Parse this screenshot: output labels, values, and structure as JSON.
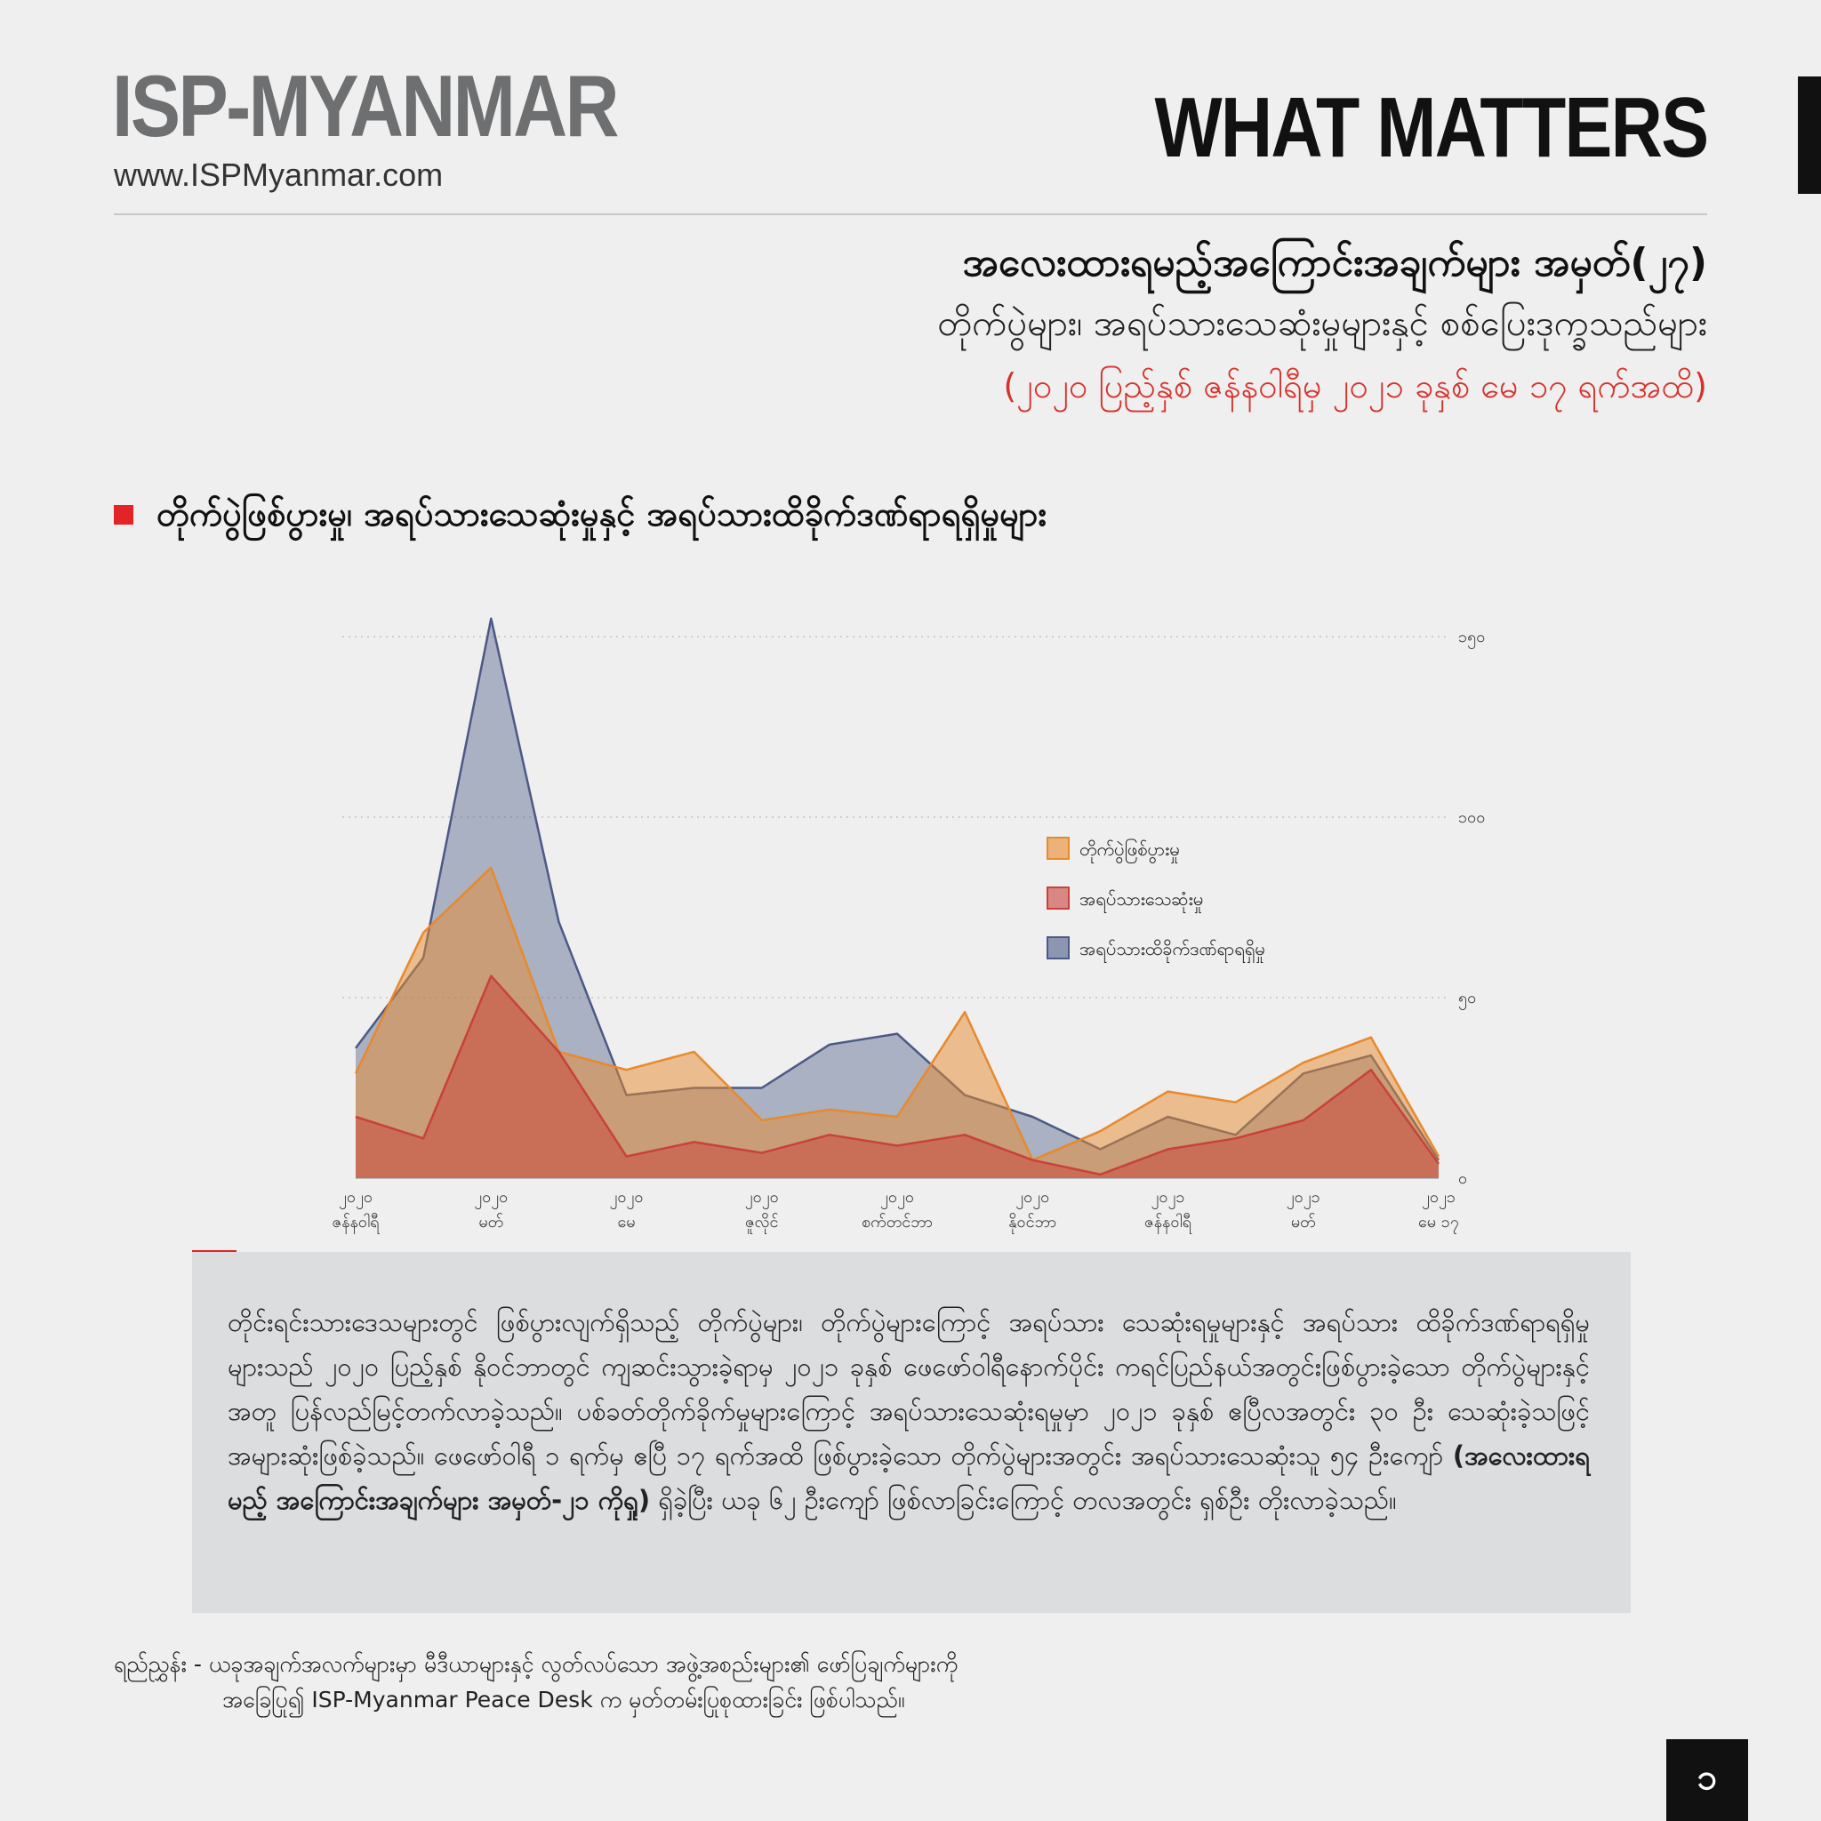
{
  "header": {
    "brand": "ISP-MYANMAR",
    "url": "www.ISPMyanmar.com",
    "series_label": "WHAT MATTERS"
  },
  "title": {
    "line1": "အလေးထားရမည့်အကြောင်းအချက်များ အမှတ်(၂၇)",
    "line2": "တိုက်ပွဲများ၊ အရပ်သားသေဆုံးမှုများနှင့် စစ်ပြေးဒုက္ခသည်များ",
    "date_range": "(၂၀၂၀ ပြည့်နှစ် ဇန်နဝါရီမှ ၂၀၂၁ ခုနှစ် မေ ၁၇ ရက်အထိ)"
  },
  "section": {
    "title": "တိုက်ပွဲဖြစ်ပွားမှု၊ အရပ်သားသေဆုံးမှုနှင့် အရပ်သားထိခိုက်ဒဏ်ရာရရှိမှုများ"
  },
  "colors": {
    "accent": "#e32325",
    "clashes": "#e8892c",
    "deaths": "#c9413a",
    "injuries": "#4b5a85"
  },
  "chart_data": {
    "type": "area",
    "y_ticks": [
      "၁၅၀",
      "၁၀၀",
      "၅၀",
      "၀"
    ],
    "y_tick_values": [
      150,
      100,
      50,
      0
    ],
    "ylim": [
      0,
      150
    ],
    "grid": "dotted horizontal",
    "legend_position": "right",
    "x_labels": [
      {
        "year": "၂၀၂၀",
        "month": "ဇန်နဝါရီ",
        "highlight": false
      },
      {
        "year": "၂၀၂၀",
        "month": "မတ်",
        "highlight": false
      },
      {
        "year": "၂၀၂၀",
        "month": "မေ",
        "highlight": false
      },
      {
        "year": "၂၀၂၀",
        "month": "ဇူလိုင်",
        "highlight": false
      },
      {
        "year": "၂၀၂၀",
        "month": "စက်တင်ဘာ",
        "highlight": false
      },
      {
        "year": "၂၀၂၀",
        "month": "နိုဝင်ဘာ",
        "highlight": false
      },
      {
        "year": "၂၀၂၁",
        "month": "ဇန်နဝါရီ",
        "highlight": false
      },
      {
        "year": "၂၀၂၁",
        "month": "မတ်",
        "highlight": false
      },
      {
        "year": "၂၀၂၁",
        "month": "မေ ၁၇",
        "highlight": true
      }
    ],
    "series": [
      {
        "name": "တိုက်ပွဲဖြစ်ပွားမှု",
        "color": "#e8892c",
        "values": [
          29,
          68,
          86,
          35,
          30,
          35,
          16,
          19,
          17,
          46,
          5,
          13,
          24,
          21,
          32,
          39,
          6
        ]
      },
      {
        "name": "အရပ်သားသေဆုံးမှု",
        "color": "#c9413a",
        "values": [
          17,
          11,
          56,
          35,
          6,
          10,
          7,
          12,
          9,
          12,
          5,
          1,
          8,
          11,
          16,
          30,
          4
        ]
      },
      {
        "name": "အရပ်သားထိခိုက်ဒဏ်ရာရရှိမှု",
        "color": "#4b5a85",
        "values": [
          36,
          61,
          155,
          71,
          23,
          25,
          25,
          37,
          40,
          23,
          17,
          8,
          17,
          12,
          29,
          34,
          5
        ]
      }
    ]
  },
  "note": {
    "text": "တိုင်းရင်းသားဒေသများတွင် ဖြစ်ပွားလျက်ရှိသည့် တိုက်ပွဲများ၊ တိုက်ပွဲများကြောင့် အရပ်သား သေဆုံးရမှုများနှင့် အရပ်သား ထိခိုက်ဒဏ်ရာရရှိမှုများသည် ၂၀၂၀ ပြည့်နှစ် နိုဝင်ဘာတွင် ကျဆင်းသွားခဲ့ရာမှ ၂၀၂၁ ခုနှစ် ဖေဖော်ဝါရီနောက်ပိုင်း ကရင်ပြည်နယ်အတွင်းဖြစ်ပွားခဲ့သော တိုက်ပွဲများနှင့်အတူ ပြန်လည်မြင့်တက်လာခဲ့သည်။ ပစ်ခတ်တိုက်ခိုက်မှုများကြောင့် အရပ်သားသေဆုံးရမှုမှာ ၂၀၂၁ ခုနှစ် ဧပြီလအတွင်း ၃၀ ဦး သေဆုံးခဲ့သဖြင့် အများဆုံးဖြစ်ခဲ့သည်။ ဖေဖော်ဝါရီ ၁ ရက်မှ ဧပြီ ၁၇ ရက်အထိ ဖြစ်ပွားခဲ့သော တိုက်ပွဲများအတွင်း အရပ်သားသေဆုံးသူ ၅၄ ဦးကျော် ",
    "bold": "(အလေးထားရမည့် အကြောင်းအချက်များ အမှတ်-၂၁ ကိုရှု)",
    "tail": " ရှိခဲ့ပြီး ယခု ၆၂ ဦးကျော် ဖြစ်လာခြင်းကြောင့် တလအတွင်း ရှစ်ဦး တိုးလာခဲ့သည်။"
  },
  "footer": {
    "line1": "ရည်ညွှန်း - ယခုအချက်အလက်များမှာ မီဒီယာများနှင့် လွတ်လပ်သော အဖွဲ့အစည်းများ၏ ဖော်ပြချက်များကို",
    "line2": "အခြေပြု၍ ISP-Myanmar Peace Desk က မှတ်တမ်းပြုစုထားခြင်း ဖြစ်ပါသည်။"
  },
  "page": {
    "number": "၁"
  }
}
